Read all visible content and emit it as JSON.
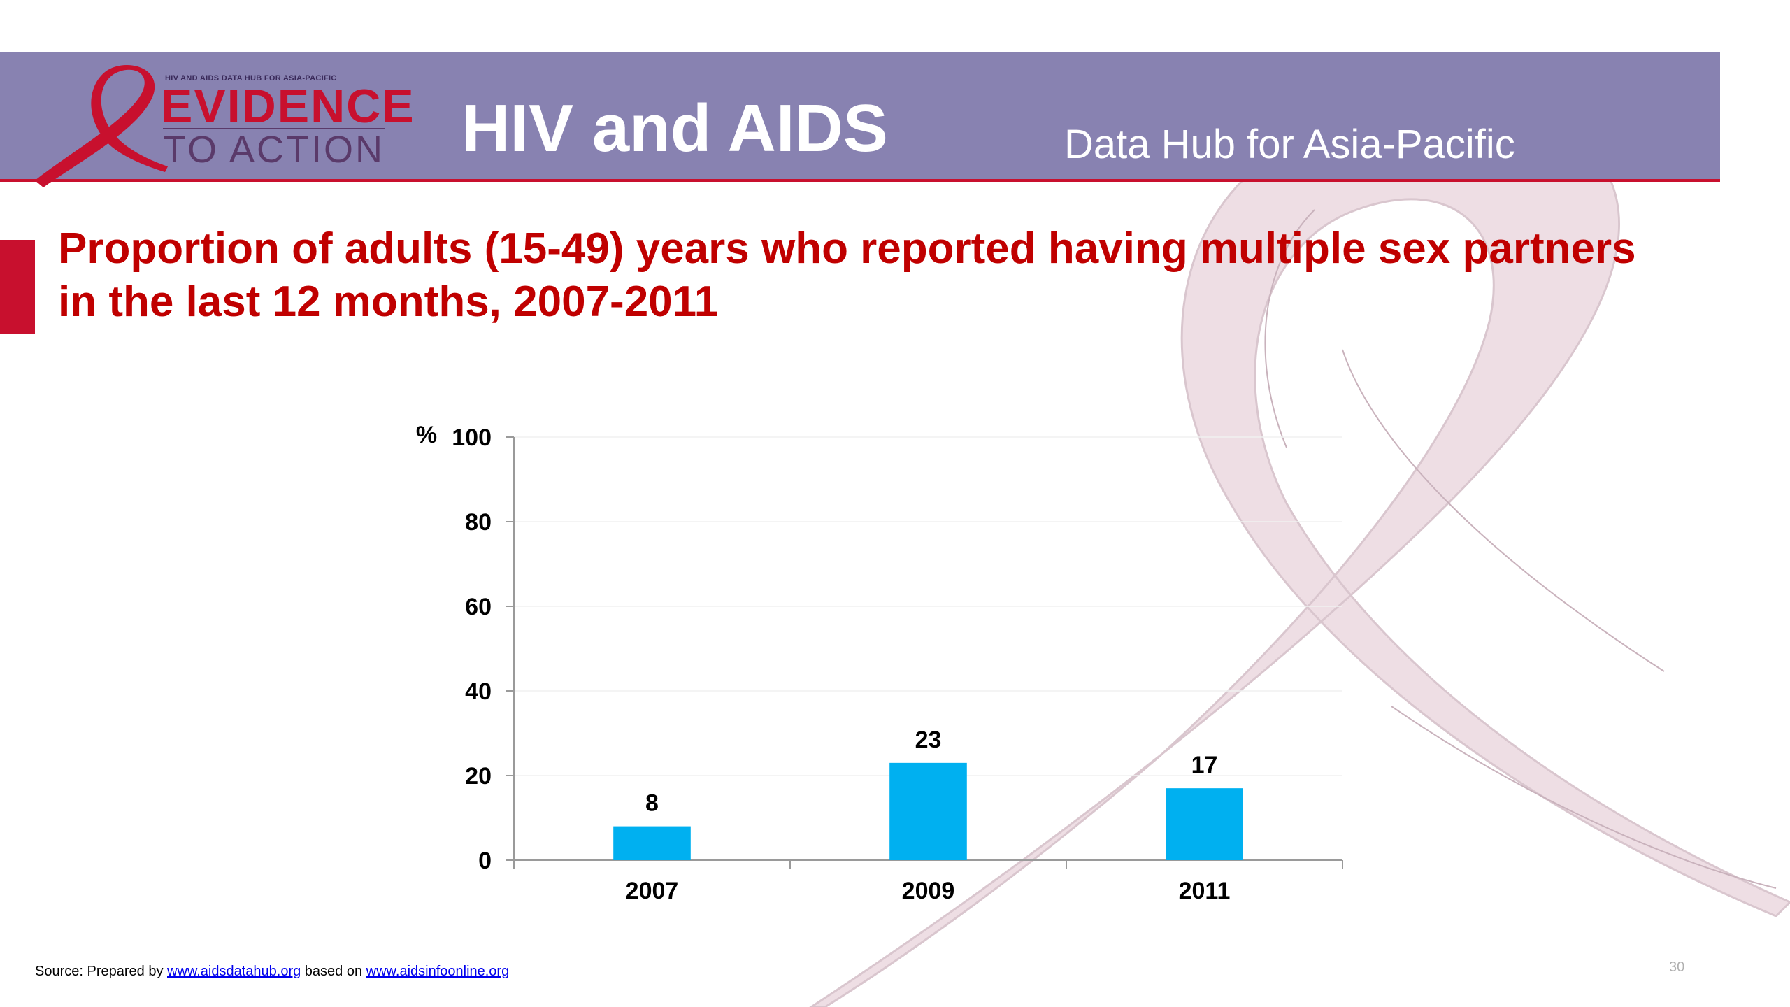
{
  "header": {
    "logo_small_text": "HIV AND AIDS DATA HUB FOR ASIA-PACIFIC",
    "logo_word_1": "EVIDENCE",
    "logo_word_2": "TO ACTION",
    "title": "HIV and AIDS",
    "subtitle": "Data Hub for Asia-Pacific",
    "band_color": "#8882b1",
    "accent_color": "#c8102e"
  },
  "chart_data": {
    "type": "bar",
    "title_line_1": "Proportion of adults (15-49) years who reported having multiple sex partners",
    "title_line_2": "in the last 12 months, 2007-2011",
    "ylabel": "%",
    "xlabel": "",
    "categories": [
      "2007",
      "2009",
      "2011"
    ],
    "values": [
      8,
      23,
      17
    ],
    "data_labels": [
      "8",
      "23",
      "17"
    ],
    "ylim": [
      0,
      100
    ],
    "yticks": [
      0,
      20,
      40,
      60,
      80,
      100
    ],
    "bar_color": "#00b0f0",
    "grid": true,
    "legend": "none"
  },
  "footer": {
    "source_prefix": "Source: Prepared by",
    "source_link_1": "www.aidsdatahub.org",
    "source_middle": "based on",
    "source_link_2": "www.aidsinfoonline.org",
    "slide_number": "30"
  }
}
